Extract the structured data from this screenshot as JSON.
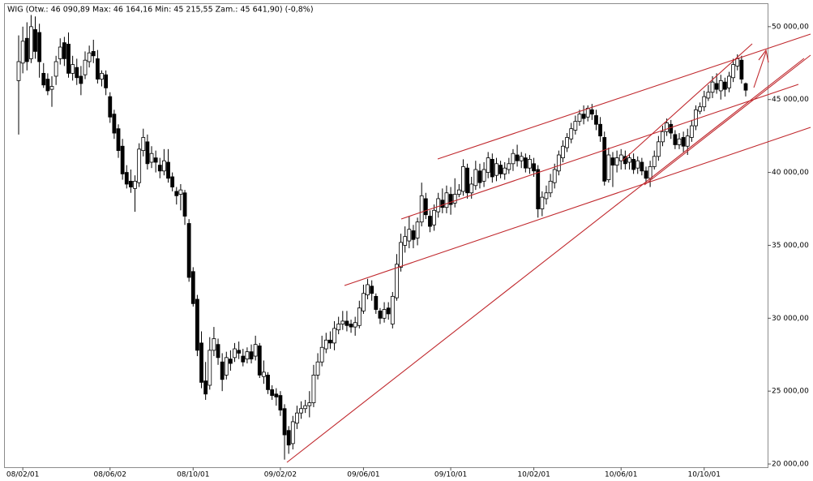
{
  "chart_data": {
    "type": "candlestick",
    "title": "WIG (Otw.: 46 090,89  Max: 46 164,16  Min: 45 215,55  Zam.: 45 641,90)  (-0,8%)",
    "categories": [
      null,
      "08/02/01",
      null,
      null,
      null,
      null,
      null,
      null,
      null,
      null,
      null,
      null,
      null,
      null,
      null,
      null,
      null,
      null,
      null,
      null,
      null,
      null,
      "08/06/02",
      null,
      null,
      null,
      null,
      null,
      null,
      null,
      null,
      null,
      null,
      null,
      null,
      null,
      null,
      null,
      null,
      null,
      null,
      null,
      "08/10/01",
      null,
      null,
      null,
      null,
      null,
      null,
      null,
      null,
      null,
      null,
      null,
      null,
      null,
      null,
      null,
      null,
      null,
      null,
      null,
      null,
      "09/02/02",
      null,
      null,
      null,
      null,
      null,
      null,
      null,
      null,
      null,
      null,
      null,
      null,
      null,
      null,
      null,
      null,
      null,
      null,
      null,
      "09/06/01",
      null,
      null,
      null,
      null,
      null,
      null,
      null,
      null,
      null,
      null,
      null,
      null,
      null,
      null,
      null,
      null,
      null,
      null,
      null,
      null,
      "09/10/01",
      null,
      null,
      null,
      null,
      null,
      null,
      null,
      null,
      null,
      null,
      null,
      null,
      null,
      null,
      null,
      null,
      null,
      null,
      null,
      "10/02/01",
      null,
      null,
      null,
      null,
      null,
      null,
      null,
      null,
      null,
      null,
      null,
      null,
      null,
      null,
      null,
      null,
      null,
      null,
      null,
      null,
      "10/06/01",
      null,
      null,
      null,
      null,
      null,
      null,
      null,
      null,
      null,
      null,
      null,
      null,
      null,
      null,
      null,
      null,
      null,
      null,
      null,
      "10/10/01",
      null,
      null,
      null,
      null,
      null,
      null,
      null,
      null,
      null,
      null
    ],
    "open": [
      46300,
      47500,
      49200,
      47800,
      49800,
      49600,
      46800,
      46400,
      45700,
      46600,
      47800,
      48900,
      48800,
      46800,
      47200,
      46600,
      46700,
      47600,
      48300,
      47800,
      46400,
      46700,
      45200,
      44000,
      43000,
      41800,
      40000,
      39400,
      38900,
      39300,
      41500,
      42100,
      40700,
      41000,
      40500,
      40100,
      40700,
      39700,
      38700,
      38500,
      38600,
      36500,
      33200,
      31300,
      28300,
      25700,
      25400,
      27800,
      28200,
      27000,
      26100,
      27200,
      27300,
      27800,
      27400,
      27200,
      27700,
      27400,
      28100,
      26000,
      26100,
      25100,
      24800,
      24700,
      23800,
      22300,
      21400,
      22800,
      23500,
      23800,
      24000,
      24200,
      26100,
      27000,
      27900,
      28500,
      28300,
      29200,
      29600,
      29800,
      29600,
      29400,
      29500,
      30500,
      31600,
      32200,
      31500,
      30500,
      30000,
      30700,
      29600,
      31400,
      33500,
      35000,
      35300,
      36000,
      35500,
      36600,
      38200,
      37000,
      36400,
      37300,
      38100,
      37600,
      38500,
      37900,
      38500,
      38700,
      40300,
      38600,
      39100,
      40100,
      39400,
      40000,
      40900,
      39800,
      40500,
      39900,
      40200,
      40600,
      41200,
      40800,
      41000,
      40300,
      40600,
      40200,
      37500,
      38200,
      38600,
      39300,
      40100,
      41000,
      41700,
      42300,
      42900,
      43500,
      44000,
      43800,
      44300,
      43900,
      43300,
      42400,
      39500,
      41000,
      40500,
      40800,
      41100,
      40700,
      40900,
      40300,
      40700,
      40100,
      39600,
      40400,
      41100,
      42100,
      42800,
      43300,
      42600,
      41900,
      42400,
      41800,
      42400,
      43200,
      44200,
      44500,
      45100,
      45500,
      46100,
      45600,
      46200,
      45800,
      46500,
      47300,
      47700,
      46090.89
    ],
    "high": [
      49400,
      50000,
      50300,
      50800,
      50700,
      50200,
      47500,
      46800,
      46600,
      48000,
      49200,
      49300,
      49600,
      48000,
      47800,
      47300,
      48300,
      48700,
      49100,
      48400,
      47000,
      47000,
      45500,
      44300,
      43300,
      42300,
      40500,
      40200,
      39800,
      42000,
      43000,
      42600,
      41800,
      41500,
      41000,
      41600,
      41600,
      40000,
      39000,
      39200,
      38800,
      36800,
      33500,
      31600,
      29100,
      27000,
      28700,
      29400,
      28600,
      27600,
      27700,
      27800,
      28300,
      28400,
      27900,
      28000,
      28200,
      28800,
      28300,
      27100,
      26300,
      25400,
      25200,
      25000,
      24100,
      22600,
      23300,
      24000,
      24300,
      24400,
      25000,
      26800,
      27600,
      28800,
      29000,
      29100,
      29800,
      30100,
      30500,
      30500,
      29900,
      30100,
      31200,
      32300,
      32700,
      32600,
      31700,
      30700,
      31100,
      31100,
      31800,
      34400,
      35800,
      36300,
      37000,
      36400,
      36900,
      39300,
      38600,
      37400,
      37800,
      38600,
      38900,
      39100,
      39000,
      39600,
      39200,
      40900,
      40600,
      39700,
      40800,
      40600,
      40700,
      41400,
      41300,
      41000,
      40800,
      40700,
      41000,
      41600,
      41900,
      41400,
      41300,
      41200,
      41000,
      40500,
      38700,
      39100,
      39900,
      40600,
      41500,
      42200,
      42700,
      43400,
      43900,
      44300,
      44600,
      44600,
      44700,
      44300,
      43800,
      42800,
      41700,
      41400,
      41500,
      41600,
      41500,
      41300,
      41300,
      41100,
      41000,
      40400,
      40800,
      41500,
      42500,
      43200,
      43700,
      43600,
      42900,
      42700,
      42800,
      43000,
      43600,
      44600,
      44800,
      45600,
      46000,
      46600,
      46800,
      46700,
      46500,
      46900,
      47800,
      48100,
      48000,
      46164.16
    ],
    "low": [
      42600,
      46800,
      47000,
      47500,
      47800,
      46500,
      45800,
      45300,
      44500,
      46000,
      47400,
      47300,
      46500,
      46300,
      46000,
      45300,
      46400,
      47200,
      47500,
      46100,
      45900,
      45300,
      43400,
      42300,
      41000,
      39500,
      38900,
      38600,
      37300,
      39000,
      41100,
      40200,
      40300,
      40000,
      39600,
      39800,
      39300,
      38700,
      37800,
      37400,
      36400,
      32500,
      30800,
      27400,
      25200,
      24400,
      25100,
      27400,
      26800,
      25000,
      25800,
      26400,
      27000,
      27200,
      26700,
      26900,
      26900,
      27100,
      25900,
      25500,
      24800,
      24400,
      24000,
      23300,
      20300,
      20700,
      21000,
      22400,
      23100,
      23500,
      23200,
      23900,
      25800,
      26700,
      27600,
      27900,
      27800,
      28900,
      29200,
      29100,
      29000,
      28800,
      29300,
      30300,
      31300,
      31200,
      30300,
      29600,
      29700,
      29900,
      29300,
      31200,
      33200,
      34500,
      34800,
      34800,
      35000,
      36300,
      36800,
      35900,
      36000,
      36900,
      37200,
      37200,
      37100,
      37600,
      38300,
      38400,
      38200,
      38200,
      38800,
      38900,
      39000,
      39600,
      39300,
      39400,
      39600,
      39500,
      39900,
      40100,
      40400,
      40300,
      40000,
      39900,
      39700,
      36900,
      37000,
      37800,
      38300,
      38900,
      39800,
      40700,
      41400,
      42000,
      42600,
      43200,
      43300,
      43500,
      43600,
      42900,
      42100,
      39100,
      39300,
      39000,
      40000,
      40200,
      40200,
      40200,
      39900,
      39900,
      39800,
      39300,
      39000,
      40200,
      40800,
      41800,
      42500,
      42300,
      41600,
      41600,
      41400,
      41200,
      42100,
      42900,
      44000,
      44200,
      44900,
      45100,
      45400,
      45000,
      45200,
      45500,
      46200,
      47000,
      46100,
      45215.55
    ],
    "close": [
      47600,
      49000,
      47600,
      50000,
      48300,
      47600,
      46000,
      45600,
      45900,
      47600,
      48600,
      47800,
      46800,
      47400,
      46500,
      46100,
      47700,
      48200,
      48000,
      46400,
      46800,
      45800,
      43800,
      42700,
      41500,
      39900,
      39200,
      39000,
      39400,
      41600,
      42400,
      40600,
      41300,
      40700,
      40100,
      40800,
      39600,
      39000,
      38400,
      38800,
      37000,
      32800,
      31000,
      27800,
      25600,
      24800,
      27800,
      28600,
      27300,
      25800,
      27300,
      26900,
      27900,
      27600,
      27000,
      27700,
      27200,
      28200,
      26100,
      26300,
      25100,
      24700,
      24600,
      23700,
      22000,
      21300,
      22900,
      23500,
      23800,
      24000,
      24200,
      26100,
      27000,
      28000,
      28500,
      28300,
      29300,
      29600,
      29800,
      29500,
      29400,
      29700,
      30700,
      31700,
      32300,
      31700,
      30600,
      30000,
      30600,
      30300,
      31500,
      33700,
      35200,
      35600,
      36100,
      35400,
      36600,
      38400,
      37100,
      36300,
      37400,
      38200,
      37600,
      38600,
      37800,
      38500,
      38800,
      40400,
      38600,
      39200,
      40200,
      39300,
      40200,
      41000,
      39700,
      40600,
      39900,
      40300,
      40600,
      41300,
      40800,
      41100,
      40300,
      40900,
      40100,
      37500,
      38300,
      38600,
      39400,
      40200,
      41200,
      41800,
      42400,
      43000,
      43500,
      44000,
      43700,
      44400,
      44000,
      43300,
      42500,
      39400,
      41200,
      40500,
      41000,
      41200,
      40600,
      41000,
      40200,
      40800,
      40100,
      39600,
      40400,
      41100,
      42100,
      42800,
      43400,
      42700,
      41900,
      42300,
      41800,
      42500,
      43200,
      44300,
      44500,
      45200,
      45500,
      46200,
      45700,
      46300,
      45700,
      46600,
      47400,
      47800,
      46400,
      45641.9
    ],
    "up_color": "#ffffff",
    "down_color": "#000000",
    "ylim": [
      19780,
      51550
    ],
    "yticks": [
      {
        "value": 20000,
        "label": "20 000,00"
      },
      {
        "value": 25000,
        "label": "25 000,00"
      },
      {
        "value": 30000,
        "label": "30 000,00"
      },
      {
        "value": 35000,
        "label": "35 000,00"
      },
      {
        "value": 40000,
        "label": "40 000,00"
      },
      {
        "value": 45000,
        "label": "45 000,00"
      },
      {
        "value": 50000,
        "label": "50 000,00"
      }
    ]
  }
}
